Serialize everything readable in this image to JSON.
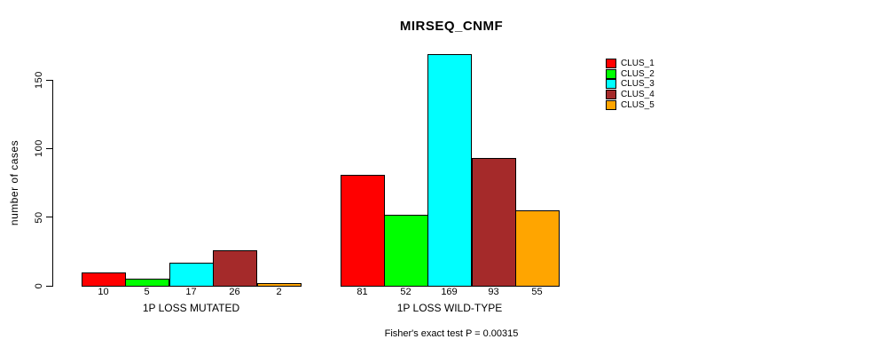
{
  "chart_data": {
    "type": "bar",
    "title": "MIRSEQ_CNMF",
    "ylabel": "number of cases",
    "xlabel": "",
    "ylim": [
      0,
      150
    ],
    "y_ticks": [
      0,
      50,
      100,
      150
    ],
    "grid": false,
    "legend_position": "right",
    "categories": [
      "1P LOSS MUTATED",
      "1P LOSS WILD-TYPE"
    ],
    "series": [
      {
        "name": "CLUS_1",
        "color": "#FF0000",
        "values": [
          10,
          81
        ]
      },
      {
        "name": "CLUS_2",
        "color": "#00FF00",
        "values": [
          5,
          52
        ]
      },
      {
        "name": "CLUS_3",
        "color": "#00FFFF",
        "values": [
          17,
          169
        ]
      },
      {
        "name": "CLUS_4",
        "color": "#A52A2A",
        "values": [
          26,
          93
        ]
      },
      {
        "name": "CLUS_5",
        "color": "#FFA500",
        "values": [
          2,
          55
        ]
      }
    ],
    "bar_value_labels": [
      [
        "10",
        "5",
        "17",
        "26",
        "2"
      ],
      [
        "81",
        "52",
        "169",
        "93",
        "55"
      ]
    ],
    "footnote": "Fisher's exact test P = 0.00315",
    "colors": {
      "background": "#FFFFFF",
      "text": "#000000",
      "axis": "#000000"
    }
  }
}
